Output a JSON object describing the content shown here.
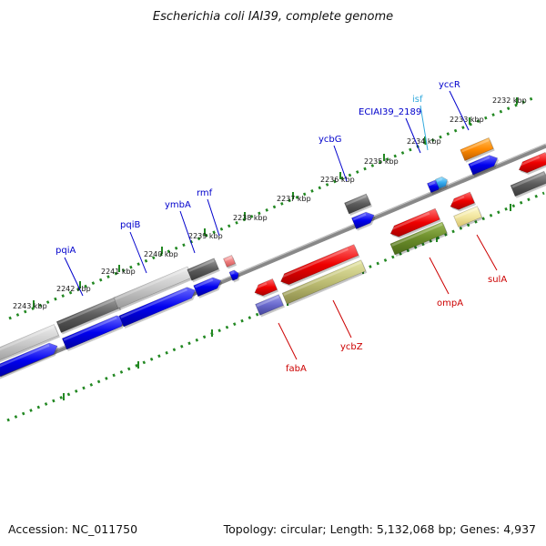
{
  "title": "Escherichia coli IAI39, complete genome",
  "footer": {
    "accession": "Accession: NC_011750",
    "summary": "Topology: circular; Length: 5,132,068 bp; Genes: 4,937"
  },
  "colors": {
    "forward_label": "#0000cc",
    "reverse_label": "#cc0000",
    "is_label": "#33aadd",
    "ticks": "#228822",
    "backbone": "#888888"
  },
  "scale_ticks": [
    "2243 kbp",
    "2242 kbp",
    "2241 kbp",
    "2240 kbp",
    "2239 kbp",
    "2238 kbp",
    "2237 kbp",
    "2236 kbp",
    "2235 kbp",
    "2234 kbp",
    "2233 kbp",
    "2232 kbp"
  ],
  "gene_labels": {
    "pqiA": "pqiA",
    "pqiB": "pqiB",
    "ymbA": "ymbA",
    "rmf": "rmf",
    "ycbG": "ycbG",
    "ECIAI39_2189": "ECIAI39_2189",
    "isf": "isf",
    "yccR": "yccR",
    "fabA": "fabA",
    "ycbZ": "ycbZ",
    "ompA": "ompA",
    "sulA": "sulA"
  }
}
